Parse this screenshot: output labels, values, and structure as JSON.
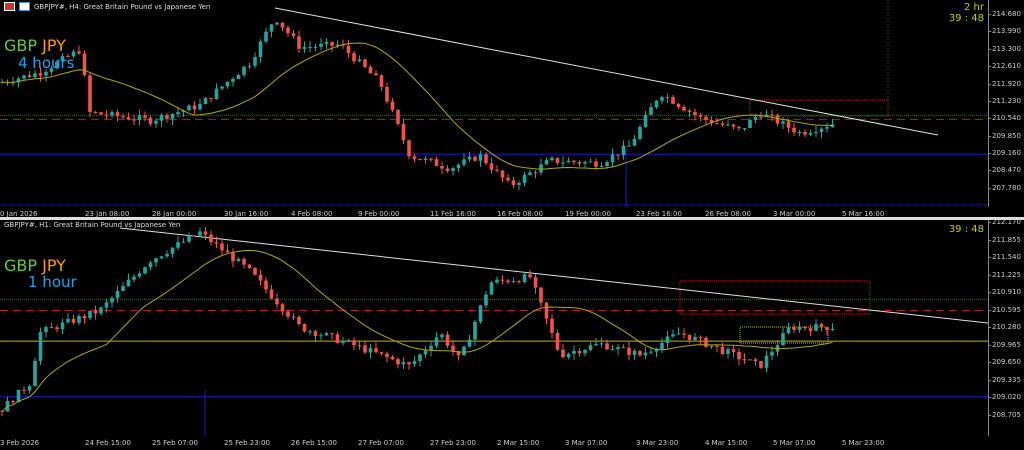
{
  "colors": {
    "bull": "#26a69a",
    "bear": "#ef5350",
    "ma": "#b0a800",
    "trend": "#e0e0e0",
    "green_level": "#1f7a1f",
    "red_level": "#b02020",
    "blue_level": "#1a1ad0",
    "yellow_level": "#b8b800"
  },
  "top": {
    "title": "GBPJPY#, H4:  Great Britain Pound vs Japanese Yen",
    "symbol_gbp": "GBP",
    "symbol_jpy": "JPY",
    "timeframe": "4 hours",
    "timer_period": "2 hr",
    "timer": "39 : 48",
    "price_axis": [
      "214.680",
      "213.990",
      "213.300",
      "212.610",
      "211.920",
      "211.230",
      "210.540",
      "209.850",
      "209.160",
      "208.470",
      "207.780"
    ],
    "time_axis": [
      "0 Jan 2026",
      "23 Jan 08:00",
      "28 Jan 00:00",
      "30 Jan 16:00",
      "4 Feb 08:00",
      "9 Feb 00:00",
      "11 Feb 16:00",
      "16 Feb 08:00",
      "19 Feb 00:00",
      "23 Feb 16:00",
      "26 Feb 08:00",
      "3 Mar 00:00",
      "5 Mar 16:00"
    ],
    "levels": {
      "green": 210.7,
      "red": 210.54,
      "blue": 209.16
    },
    "price_path": [
      [
        0,
        212.0
      ],
      [
        40,
        212.4
      ],
      [
        80,
        213.3
      ],
      [
        90,
        210.8
      ],
      [
        150,
        210.5
      ],
      [
        200,
        211.1
      ],
      [
        250,
        212.8
      ],
      [
        275,
        214.6
      ],
      [
        300,
        213.4
      ],
      [
        340,
        213.5
      ],
      [
        380,
        212.0
      ],
      [
        410,
        209.1
      ],
      [
        450,
        208.6
      ],
      [
        480,
        209.1
      ],
      [
        510,
        207.9
      ],
      [
        550,
        208.9
      ],
      [
        600,
        208.8
      ],
      [
        630,
        209.5
      ],
      [
        660,
        211.6
      ],
      [
        700,
        210.6
      ],
      [
        740,
        210.1
      ],
      [
        760,
        210.8
      ],
      [
        800,
        210.0
      ],
      [
        835,
        210.4
      ]
    ]
  },
  "bottom": {
    "title": "GBPJPY#, H1:  Great Britain Pound vs Japanese Yen",
    "symbol_gbp": "GBP",
    "symbol_jpy": "JPY",
    "timeframe": "1 hour",
    "timer": "39 : 48",
    "price_axis": [
      "212.170",
      "211.855",
      "211.540",
      "211.225",
      "210.910",
      "210.595",
      "210.280",
      "209.965",
      "209.650",
      "209.335",
      "209.020",
      "208.705"
    ],
    "time_axis": [
      "3 Feb 2026",
      "24 Feb 15:00",
      "25 Feb 07:00",
      "25 Feb 23:00",
      "26 Feb 15:00",
      "27 Feb 07:00",
      "27 Feb 23:00",
      "2 Mar 15:00",
      "3 Mar 07:00",
      "3 Mar 23:00",
      "4 Mar 15:00",
      "5 Mar 07:00",
      "5 Mar 23:00"
    ],
    "levels": {
      "green": 210.8,
      "red": 210.6,
      "yellow": 210.05,
      "blue": 209.05
    },
    "price_path": [
      [
        0,
        208.8
      ],
      [
        30,
        209.3
      ],
      [
        40,
        210.2
      ],
      [
        100,
        210.6
      ],
      [
        150,
        211.5
      ],
      [
        200,
        212.0
      ],
      [
        250,
        211.3
      ],
      [
        300,
        210.3
      ],
      [
        350,
        210.0
      ],
      [
        410,
        209.6
      ],
      [
        440,
        210.2
      ],
      [
        460,
        209.7
      ],
      [
        490,
        211.1
      ],
      [
        530,
        211.2
      ],
      [
        560,
        209.8
      ],
      [
        600,
        210.0
      ],
      [
        640,
        209.8
      ],
      [
        680,
        210.2
      ],
      [
        720,
        209.9
      ],
      [
        760,
        209.6
      ],
      [
        790,
        210.3
      ],
      [
        835,
        210.3
      ]
    ]
  }
}
